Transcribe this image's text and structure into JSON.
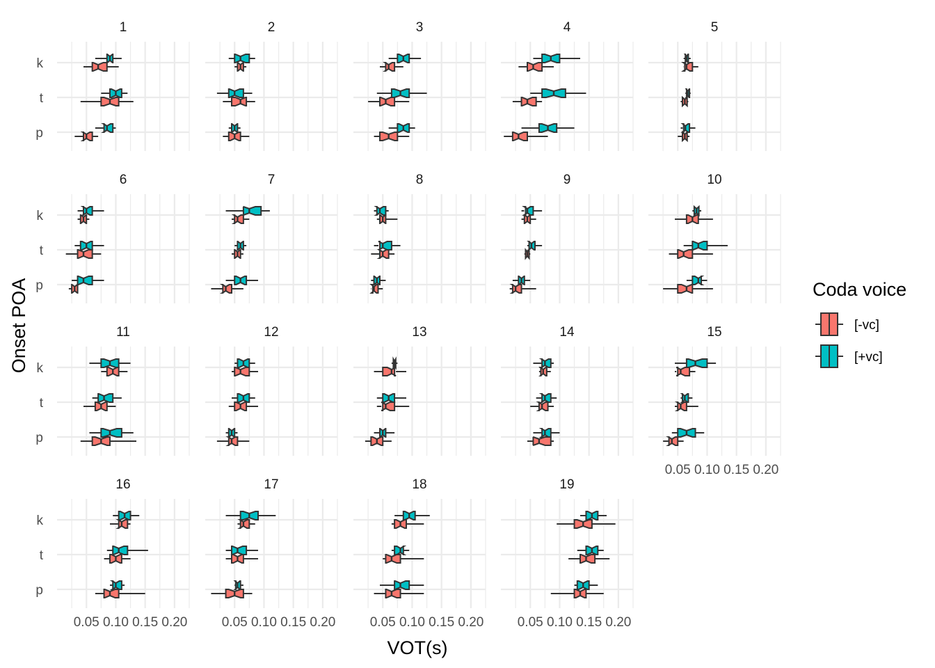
{
  "chart_data": {
    "type": "boxplot",
    "orientation": "horizontal",
    "notched": true,
    "xlabel": "VOT(s)",
    "ylabel": "Onset POA",
    "categories": [
      "k",
      "t",
      "p"
    ],
    "x_ticks": [
      "0.05",
      "0.10",
      "0.15",
      "0.20"
    ],
    "x_tick_values": [
      0.05,
      0.1,
      0.15,
      0.2
    ],
    "xlim": [
      0.0,
      0.225
    ],
    "grid": true,
    "legend": {
      "title": "Coda voice",
      "placement": "right",
      "entries": [
        {
          "label": "[-vc]",
          "color": "#F8766D"
        },
        {
          "label": "[+vc]",
          "color": "#00BFC4"
        }
      ]
    },
    "series_colors": {
      "[-vc]": "#F8766D",
      "[+vc]": "#00BFC4"
    },
    "panels": [
      {
        "label": "1",
        "boxes": {
          "k": {
            "[+vc]": [
              0.065,
              0.085,
              0.09,
              0.095,
              0.11
            ],
            "[-vc]": [
              0.045,
              0.06,
              0.07,
              0.085,
              0.105
            ]
          },
          "t": {
            "[+vc]": [
              0.075,
              0.09,
              0.1,
              0.11,
              0.12
            ],
            "[-vc]": [
              0.04,
              0.075,
              0.09,
              0.105,
              0.13
            ]
          },
          "p": {
            "[+vc]": [
              0.065,
              0.08,
              0.085,
              0.095,
              0.1
            ],
            "[-vc]": [
              0.03,
              0.045,
              0.05,
              0.06,
              0.07
            ]
          }
        }
      },
      {
        "label": "2",
        "boxes": {
          "k": {
            "[+vc]": [
              0.04,
              0.05,
              0.06,
              0.075,
              0.085
            ],
            "[-vc]": [
              0.05,
              0.055,
              0.06,
              0.065,
              0.07
            ]
          },
          "t": {
            "[+vc]": [
              0.02,
              0.04,
              0.05,
              0.065,
              0.08
            ],
            "[-vc]": [
              0.03,
              0.045,
              0.06,
              0.07,
              0.085
            ]
          },
          "p": {
            "[+vc]": [
              0.04,
              0.045,
              0.05,
              0.055,
              0.06
            ],
            "[-vc]": [
              0.03,
              0.04,
              0.05,
              0.06,
              0.075
            ]
          }
        }
      },
      {
        "label": "3",
        "boxes": {
          "k": {
            "[+vc]": [
              0.06,
              0.075,
              0.085,
              0.095,
              0.115
            ],
            "[-vc]": [
              0.045,
              0.055,
              0.06,
              0.07,
              0.085
            ]
          },
          "t": {
            "[+vc]": [
              0.04,
              0.065,
              0.08,
              0.095,
              0.125
            ],
            "[-vc]": [
              0.025,
              0.045,
              0.055,
              0.07,
              0.095
            ]
          },
          "p": {
            "[+vc]": [
              0.06,
              0.075,
              0.085,
              0.095,
              0.105
            ],
            "[-vc]": [
              0.035,
              0.045,
              0.06,
              0.075,
              0.095
            ]
          }
        }
      },
      {
        "label": "4",
        "boxes": {
          "k": {
            "[+vc]": [
              0.055,
              0.07,
              0.085,
              0.1,
              0.135
            ],
            "[-vc]": [
              0.03,
              0.045,
              0.055,
              0.07,
              0.09
            ]
          },
          "t": {
            "[+vc]": [
              0.05,
              0.07,
              0.09,
              0.11,
              0.145
            ],
            "[-vc]": [
              0.02,
              0.035,
              0.045,
              0.06,
              0.07
            ]
          },
          "p": {
            "[+vc]": [
              0.035,
              0.065,
              0.08,
              0.095,
              0.125
            ],
            "[-vc]": [
              0.005,
              0.02,
              0.03,
              0.045,
              0.08
            ]
          }
        }
      },
      {
        "label": "5",
        "boxes": {
          "k": {
            "[+vc]": [
              0.06,
              0.063,
              0.065,
              0.068,
              0.072
            ],
            "[-vc]": [
              0.06,
              0.062,
              0.065,
              0.075,
              0.085
            ]
          },
          "t": {
            "[+vc]": [
              0.063,
              0.065,
              0.067,
              0.07,
              0.072
            ],
            "[-vc]": [
              0.055,
              0.058,
              0.062,
              0.066,
              0.068
            ]
          },
          "p": {
            "[+vc]": [
              0.055,
              0.06,
              0.063,
              0.07,
              0.08
            ],
            "[-vc]": [
              0.05,
              0.058,
              0.062,
              0.066,
              0.07
            ]
          }
        }
      },
      {
        "label": "6",
        "boxes": {
          "k": {
            "[+vc]": [
              0.035,
              0.045,
              0.05,
              0.06,
              0.08
            ],
            "[-vc]": [
              0.035,
              0.04,
              0.045,
              0.05,
              0.055
            ]
          },
          "t": {
            "[+vc]": [
              0.03,
              0.04,
              0.05,
              0.06,
              0.08
            ],
            "[-vc]": [
              0.015,
              0.035,
              0.045,
              0.06,
              0.075
            ]
          },
          "p": {
            "[+vc]": [
              0.025,
              0.035,
              0.045,
              0.06,
              0.08
            ],
            "[-vc]": [
              0.02,
              0.025,
              0.03,
              0.035,
              0.035
            ]
          }
        }
      },
      {
        "label": "7",
        "boxes": {
          "k": {
            "[+vc]": [
              0.035,
              0.065,
              0.075,
              0.095,
              0.11
            ],
            "[-vc]": [
              0.045,
              0.05,
              0.055,
              0.065,
              0.075
            ]
          },
          "t": {
            "[+vc]": [
              0.05,
              0.055,
              0.06,
              0.065,
              0.07
            ],
            "[-vc]": [
              0.045,
              0.05,
              0.055,
              0.06,
              0.065
            ]
          },
          "p": {
            "[+vc]": [
              0.035,
              0.05,
              0.06,
              0.07,
              0.09
            ],
            "[-vc]": [
              0.01,
              0.03,
              0.035,
              0.045,
              0.065
            ]
          }
        }
      },
      {
        "label": "8",
        "boxes": {
          "k": {
            "[+vc]": [
              0.035,
              0.04,
              0.045,
              0.055,
              0.06
            ],
            "[-vc]": [
              0.04,
              0.045,
              0.05,
              0.055,
              0.075
            ]
          },
          "t": {
            "[+vc]": [
              0.035,
              0.045,
              0.05,
              0.065,
              0.08
            ],
            "[-vc]": [
              0.03,
              0.045,
              0.05,
              0.06,
              0.07
            ]
          },
          "p": {
            "[+vc]": [
              0.03,
              0.035,
              0.04,
              0.045,
              0.055
            ],
            "[-vc]": [
              0.03,
              0.033,
              0.035,
              0.042,
              0.05
            ]
          }
        }
      },
      {
        "label": "9",
        "boxes": {
          "k": {
            "[+vc]": [
              0.035,
              0.042,
              0.045,
              0.055,
              0.07
            ],
            "[-vc]": [
              0.035,
              0.04,
              0.045,
              0.05,
              0.06
            ]
          },
          "t": {
            "[+vc]": [
              0.045,
              0.048,
              0.052,
              0.058,
              0.07
            ],
            "[-vc]": [
              0.04,
              0.042,
              0.045,
              0.048,
              0.05
            ]
          },
          "p": {
            "[+vc]": [
              0.02,
              0.03,
              0.035,
              0.04,
              0.05
            ],
            "[-vc]": [
              0.015,
              0.02,
              0.025,
              0.035,
              0.06
            ]
          }
        }
      },
      {
        "label": "10",
        "boxes": {
          "k": {
            "[+vc]": [
              0.075,
              0.078,
              0.082,
              0.086,
              0.09
            ],
            "[-vc]": [
              0.045,
              0.065,
              0.075,
              0.085,
              0.11
            ]
          },
          "t": {
            "[+vc]": [
              0.06,
              0.075,
              0.085,
              0.1,
              0.135
            ],
            "[-vc]": [
              0.035,
              0.05,
              0.06,
              0.075,
              0.11
            ]
          },
          "p": {
            "[+vc]": [
              0.065,
              0.075,
              0.085,
              0.09,
              0.1
            ],
            "[-vc]": [
              0.025,
              0.05,
              0.065,
              0.075,
              0.11
            ]
          }
        }
      },
      {
        "label": "11",
        "boxes": {
          "k": {
            "[+vc]": [
              0.055,
              0.075,
              0.09,
              0.105,
              0.125
            ],
            "[-vc]": [
              0.075,
              0.085,
              0.095,
              0.105,
              0.12
            ]
          },
          "t": {
            "[+vc]": [
              0.06,
              0.07,
              0.08,
              0.095,
              0.11
            ],
            "[-vc]": [
              0.045,
              0.065,
              0.075,
              0.085,
              0.1
            ]
          },
          "p": {
            "[+vc]": [
              0.055,
              0.075,
              0.09,
              0.11,
              0.13
            ],
            "[-vc]": [
              0.04,
              0.06,
              0.075,
              0.09,
              0.135
            ]
          }
        }
      },
      {
        "label": "12",
        "boxes": {
          "k": {
            "[+vc]": [
              0.05,
              0.055,
              0.065,
              0.075,
              0.085
            ],
            "[-vc]": [
              0.045,
              0.05,
              0.06,
              0.075,
              0.09
            ]
          },
          "t": {
            "[+vc]": [
              0.045,
              0.055,
              0.065,
              0.075,
              0.085
            ],
            "[-vc]": [
              0.04,
              0.05,
              0.06,
              0.07,
              0.09
            ]
          },
          "p": {
            "[+vc]": [
              0.035,
              0.04,
              0.045,
              0.05,
              0.055
            ],
            "[-vc]": [
              0.02,
              0.04,
              0.045,
              0.055,
              0.075
            ]
          }
        }
      },
      {
        "label": "13",
        "boxes": {
          "k": {
            "[+vc]": [
              0.065,
              0.068,
              0.07,
              0.072,
              0.075
            ],
            "[-vc]": [
              0.035,
              0.05,
              0.065,
              0.07,
              0.09
            ]
          },
          "t": {
            "[+vc]": [
              0.04,
              0.05,
              0.06,
              0.07,
              0.09
            ],
            "[-vc]": [
              0.04,
              0.05,
              0.055,
              0.07,
              0.095
            ]
          },
          "p": {
            "[+vc]": [
              0.035,
              0.045,
              0.05,
              0.055,
              0.07
            ],
            "[-vc]": [
              0.02,
              0.03,
              0.04,
              0.05,
              0.065
            ]
          }
        }
      },
      {
        "label": "14",
        "boxes": {
          "k": {
            "[+vc]": [
              0.055,
              0.07,
              0.075,
              0.085,
              0.09
            ],
            "[-vc]": [
              0.065,
              0.068,
              0.072,
              0.078,
              0.085
            ]
          },
          "t": {
            "[+vc]": [
              0.06,
              0.07,
              0.075,
              0.085,
              0.095
            ],
            "[-vc]": [
              0.05,
              0.065,
              0.07,
              0.08,
              0.09
            ]
          },
          "p": {
            "[+vc]": [
              0.055,
              0.07,
              0.075,
              0.085,
              0.1
            ],
            "[-vc]": [
              0.045,
              0.055,
              0.065,
              0.085,
              0.09
            ]
          }
        }
      },
      {
        "label": "15",
        "boxes": {
          "k": {
            "[+vc]": [
              0.045,
              0.065,
              0.08,
              0.1,
              0.115
            ],
            "[-vc]": [
              0.045,
              0.05,
              0.055,
              0.07,
              0.08
            ]
          },
          "t": {
            "[+vc]": [
              0.055,
              0.058,
              0.062,
              0.068,
              0.075
            ],
            "[-vc]": [
              0.045,
              0.05,
              0.055,
              0.065,
              0.085
            ]
          },
          "p": {
            "[+vc]": [
              0.04,
              0.05,
              0.065,
              0.08,
              0.095
            ],
            "[-vc]": [
              0.025,
              0.035,
              0.04,
              0.05,
              0.06
            ]
          }
        }
      },
      {
        "label": "16",
        "boxes": {
          "k": {
            "[+vc]": [
              0.095,
              0.105,
              0.115,
              0.125,
              0.14
            ],
            "[-vc]": [
              0.09,
              0.105,
              0.11,
              0.12,
              0.125
            ]
          },
          "t": {
            "[+vc]": [
              0.085,
              0.095,
              0.105,
              0.12,
              0.155
            ],
            "[-vc]": [
              0.08,
              0.09,
              0.1,
              0.11,
              0.125
            ]
          },
          "p": {
            "[+vc]": [
              0.09,
              0.095,
              0.1,
              0.11,
              0.115
            ],
            "[-vc]": [
              0.065,
              0.08,
              0.09,
              0.105,
              0.15
            ]
          }
        }
      },
      {
        "label": "17",
        "boxes": {
          "k": {
            "[+vc]": [
              0.035,
              0.06,
              0.075,
              0.09,
              0.12
            ],
            "[-vc]": [
              0.055,
              0.06,
              0.065,
              0.075,
              0.085
            ]
          },
          "t": {
            "[+vc]": [
              0.035,
              0.045,
              0.055,
              0.07,
              0.09
            ],
            "[-vc]": [
              0.035,
              0.045,
              0.055,
              0.065,
              0.09
            ]
          },
          "p": {
            "[+vc]": [
              0.05,
              0.052,
              0.055,
              0.06,
              0.065
            ],
            "[-vc]": [
              0.01,
              0.035,
              0.05,
              0.065,
              0.08
            ]
          }
        }
      },
      {
        "label": "18",
        "boxes": {
          "k": {
            "[+vc]": [
              0.07,
              0.085,
              0.095,
              0.105,
              0.13
            ],
            "[-vc]": [
              0.065,
              0.07,
              0.08,
              0.09,
              0.12
            ]
          },
          "t": {
            "[+vc]": [
              0.065,
              0.07,
              0.08,
              0.085,
              0.095
            ],
            "[-vc]": [
              0.05,
              0.055,
              0.065,
              0.08,
              0.12
            ]
          },
          "p": {
            "[+vc]": [
              0.045,
              0.07,
              0.08,
              0.095,
              0.12
            ],
            "[-vc]": [
              0.035,
              0.055,
              0.065,
              0.08,
              0.12
            ]
          }
        }
      },
      {
        "label": "19",
        "boxes": {
          "k": {
            "[+vc]": [
              0.135,
              0.145,
              0.155,
              0.165,
              0.18
            ],
            "[-vc]": [
              0.095,
              0.125,
              0.14,
              0.155,
              0.195
            ]
          },
          "t": {
            "[+vc]": [
              0.13,
              0.145,
              0.155,
              0.165,
              0.175
            ],
            "[-vc]": [
              0.115,
              0.135,
              0.145,
              0.16,
              0.185
            ]
          },
          "p": {
            "[+vc]": [
              0.125,
              0.13,
              0.14,
              0.15,
              0.165
            ],
            "[-vc]": [
              0.085,
              0.125,
              0.135,
              0.145,
              0.175
            ]
          }
        }
      }
    ]
  }
}
